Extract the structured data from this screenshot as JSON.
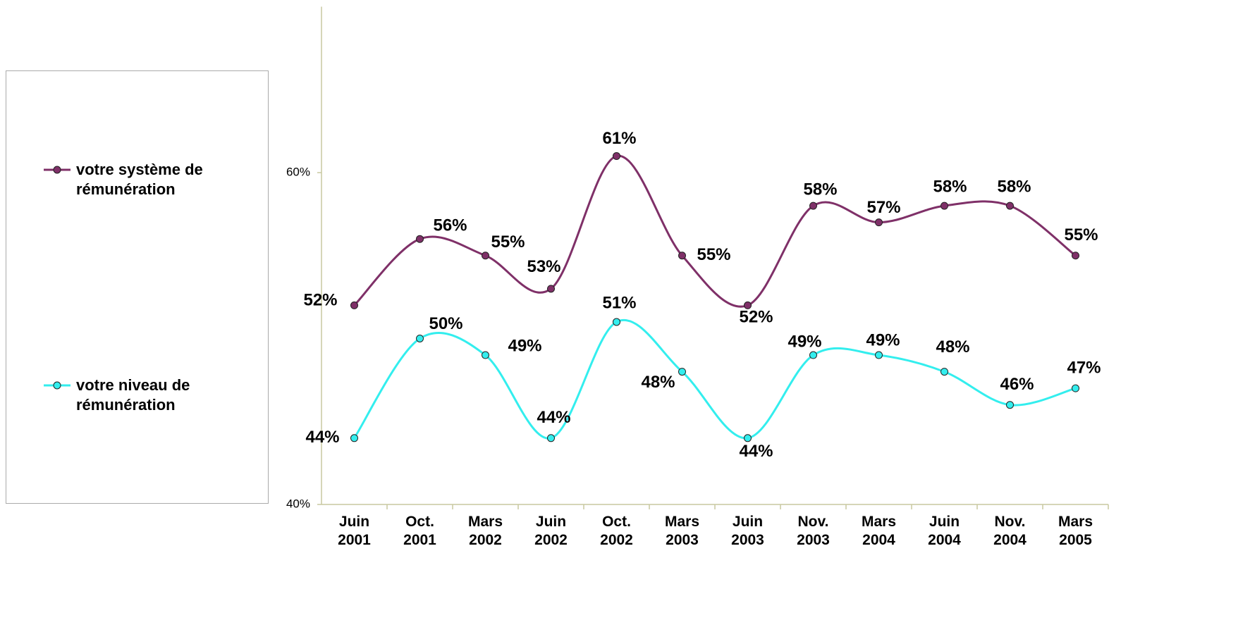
{
  "chart_data": {
    "type": "line",
    "categories": [
      "Juin 2001",
      "Oct. 2001",
      "Mars 2002",
      "Juin 2002",
      "Oct. 2002",
      "Mars 2003",
      "Juin 2003",
      "Nov. 2003",
      "Mars 2004",
      "Juin 2004",
      "Nov. 2004",
      "Mars 2005"
    ],
    "series": [
      {
        "name": "votre système de rémunération",
        "color": "#7f3068",
        "values": [
          52,
          56,
          55,
          53,
          61,
          55,
          52,
          58,
          57,
          58,
          58,
          55
        ],
        "value_labels": [
          "52%",
          "56%",
          "55%",
          "53%",
          "61%",
          "55%",
          "52%",
          "58%",
          "57%",
          "58%",
          "58%",
          "55%"
        ]
      },
      {
        "name": "votre niveau de rémunération",
        "color": "#33eeee",
        "values": [
          44,
          50,
          49,
          44,
          51,
          48,
          44,
          49,
          49,
          48,
          46,
          47
        ],
        "value_labels": [
          "44%",
          "50%",
          "49%",
          "44%",
          "51%",
          "48%",
          "44%",
          "49%",
          "49%",
          "48%",
          "46%",
          "47%"
        ]
      }
    ],
    "ylim": [
      40,
      70
    ],
    "yticks": [
      {
        "value": 40,
        "label": "40%"
      },
      {
        "value": 60,
        "label": "60%"
      }
    ],
    "legend": "left"
  }
}
